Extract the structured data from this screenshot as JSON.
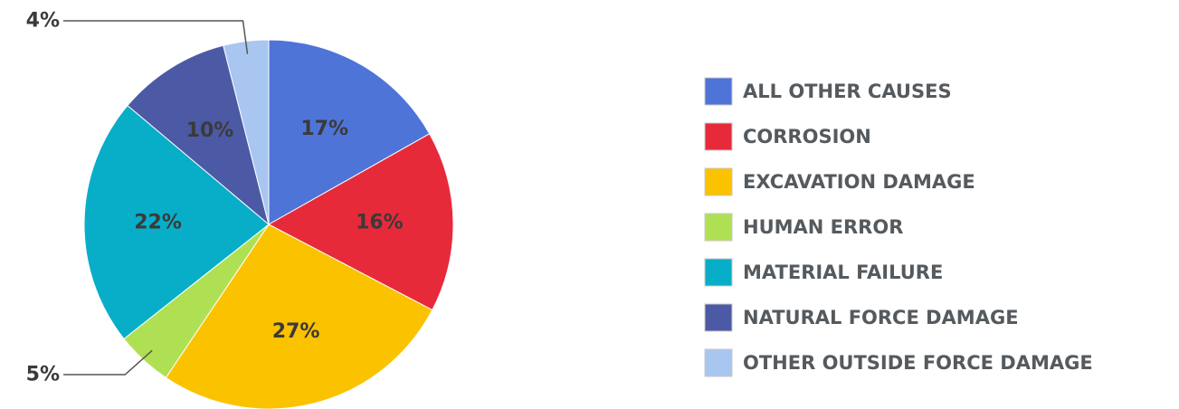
{
  "chart_data": {
    "type": "pie",
    "title": "",
    "legend_position": "right",
    "slices": [
      {
        "name": "ALL OTHER CAUSES",
        "value": 17,
        "label": "17%",
        "color": "#4f74d8"
      },
      {
        "name": "CORROSION",
        "value": 16,
        "label": "16%",
        "color": "#e72a3a"
      },
      {
        "name": "EXCAVATION DAMAGE",
        "value": 27,
        "label": "27%",
        "color": "#fbc200"
      },
      {
        "name": "HUMAN ERROR",
        "value": 5,
        "label": "5%",
        "color": "#afe053"
      },
      {
        "name": "MATERIAL FAILURE",
        "value": 22,
        "label": "22%",
        "color": "#08aec8"
      },
      {
        "name": "NATURAL FORCE DAMAGE",
        "value": 10,
        "label": "10%",
        "color": "#4c5aa5"
      },
      {
        "name": "OTHER OUTSIDE FORCE DAMAGE",
        "value": 4,
        "label": "4%",
        "color": "#a8c6f0"
      }
    ]
  }
}
